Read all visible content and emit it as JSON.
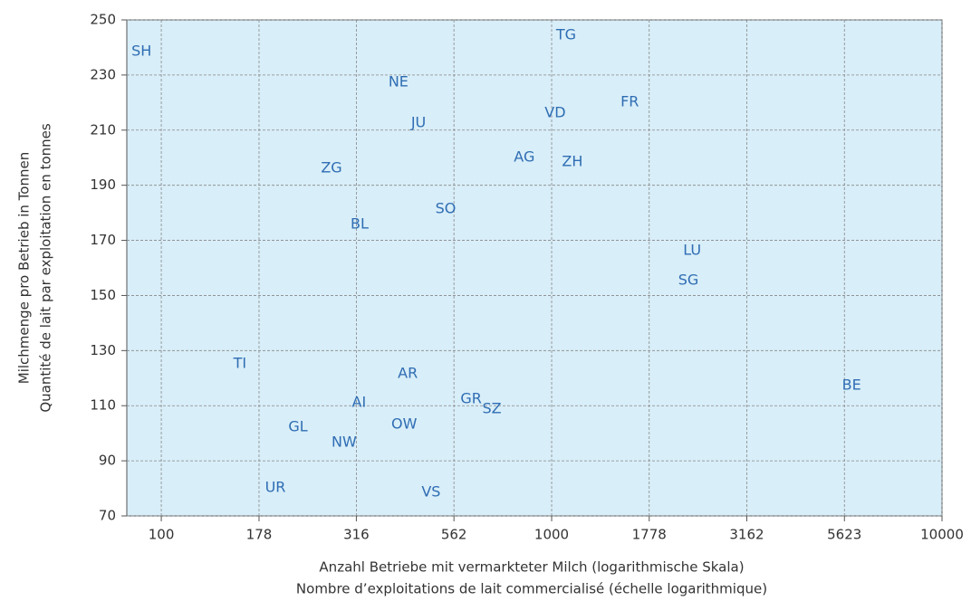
{
  "chart_data": {
    "type": "scatter",
    "xlabel": [
      "Anzahl Betriebe mit vermarkteter Milch (logarithmische Skala)",
      "Nombre d’exploitations de lait commercialisé (échelle logarithmique)"
    ],
    "ylabel": [
      "Milchmenge pro Betrieb in Tonnen",
      "Quantité de lait par exploitation en tonnes"
    ],
    "labels": [
      "SH",
      "TG",
      "NE",
      "FR",
      "VD",
      "JU",
      "AG",
      "ZH",
      "ZG",
      "SO",
      "BL",
      "LU",
      "SG",
      "TI",
      "AR",
      "BE",
      "GR",
      "AI",
      "SZ",
      "OW",
      "GL",
      "NW",
      "UR",
      "VS"
    ],
    "x": [
      89,
      1089,
      405,
      1585,
      1021,
      456,
      851,
      1130,
      273,
      535,
      322,
      2291,
      2240,
      159,
      428,
      5866,
      622,
      321,
      703,
      419,
      224,
      294,
      196,
      491
    ],
    "values": [
      238.5,
      244.4,
      227.3,
      220.1,
      216.2,
      212.5,
      200,
      198.4,
      196.1,
      181.3,
      175.8,
      166.2,
      155.4,
      125.2,
      121.6,
      117.3,
      112.4,
      111,
      108.7,
      103.2,
      102.2,
      96.6,
      80.2,
      78.5
    ],
    "xscale": "log",
    "xlim": [
      81.6,
      10000
    ],
    "xticks": [
      100,
      178,
      316,
      562,
      1000,
      1778,
      3162,
      5623,
      10000
    ],
    "ylim": [
      70,
      250
    ],
    "yticks": [
      70,
      90,
      110,
      130,
      150,
      170,
      190,
      210,
      230,
      250
    ],
    "grid": true,
    "color": "#2f6db3",
    "background": "#d8eef9"
  }
}
